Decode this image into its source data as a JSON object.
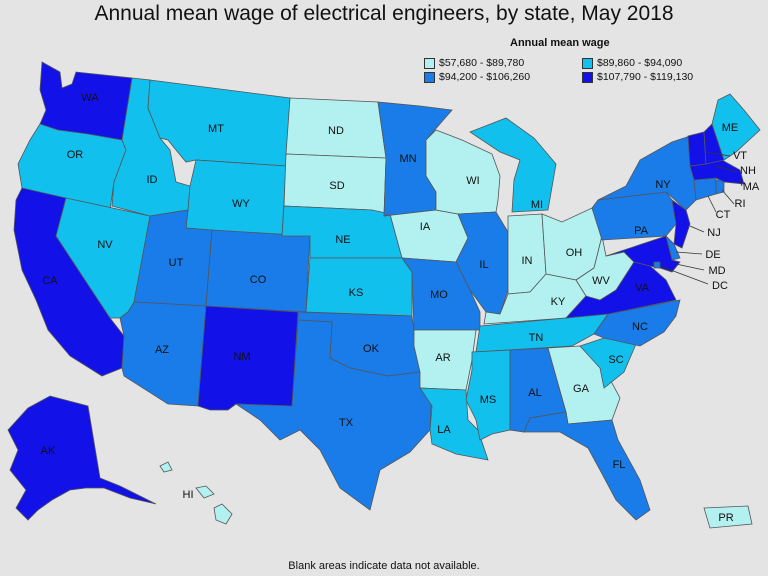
{
  "title": "Annual mean wage of electrical engineers, by state, May 2018",
  "legend": {
    "title": "Annual mean wage",
    "items": [
      {
        "label": "$57,680 - $89,780",
        "color": "#b3f0f0"
      },
      {
        "label": "$89,860 - $94,090",
        "color": "#12c0ee"
      },
      {
        "label": "$94,200 - $106,260",
        "color": "#1a7ce8"
      },
      {
        "label": "$107,790 - $119,130",
        "color": "#1212e8"
      }
    ]
  },
  "footnote": "Blank areas indicate data not available.",
  "states": {
    "WA": 3,
    "OR": 1,
    "CA": 3,
    "NV": 1,
    "ID": 1,
    "MT": 1,
    "WY": 1,
    "UT": 2,
    "AZ": 2,
    "CO": 2,
    "NM": 3,
    "ND": 0,
    "SD": 0,
    "NE": 1,
    "KS": 1,
    "OK": 2,
    "TX": 2,
    "MN": 2,
    "IA": 0,
    "MO": 2,
    "AR": 0,
    "LA": 1,
    "WI": 0,
    "IL": 2,
    "MS": 1,
    "MI": 1,
    "IN": 0,
    "OH": 0,
    "KY": 0,
    "TN": 1,
    "AL": 2,
    "GA": 0,
    "FL": 2,
    "SC": 1,
    "NC": 2,
    "VA": 3,
    "WV": 0,
    "PA": 2,
    "NY": 2,
    "VT": 3,
    "NH": 3,
    "ME": 1,
    "MA": 3,
    "CT": 2,
    "RI": 2,
    "NJ": 3,
    "DE": 2,
    "MD": 3,
    "DC": 2,
    "AK": 3,
    "HI": 0,
    "PR": 0
  },
  "labels": {
    "WA": "WA",
    "OR": "OR",
    "CA": "CA",
    "NV": "NV",
    "ID": "ID",
    "MT": "MT",
    "WY": "WY",
    "UT": "UT",
    "AZ": "AZ",
    "CO": "CO",
    "NM": "NM",
    "ND": "ND",
    "SD": "SD",
    "NE": "NE",
    "KS": "KS",
    "OK": "OK",
    "TX": "TX",
    "MN": "MN",
    "IA": "IA",
    "MO": "MO",
    "AR": "AR",
    "LA": "LA",
    "WI": "WI",
    "IL": "IL",
    "MS": "MS",
    "MI": "MI",
    "IN": "IN",
    "OH": "OH",
    "KY": "KY",
    "TN": "TN",
    "AL": "AL",
    "GA": "GA",
    "FL": "FL",
    "SC": "SC",
    "NC": "NC",
    "VA": "VA",
    "WV": "WV",
    "PA": "PA",
    "NY": "NY",
    "VT": "VT",
    "NH": "NH",
    "ME": "ME",
    "MA": "MA",
    "CT": "CT",
    "RI": "RI",
    "NJ": "NJ",
    "DE": "DE",
    "MD": "MD",
    "DC": "DC",
    "AK": "AK",
    "HI": "HI",
    "PR": "PR"
  }
}
